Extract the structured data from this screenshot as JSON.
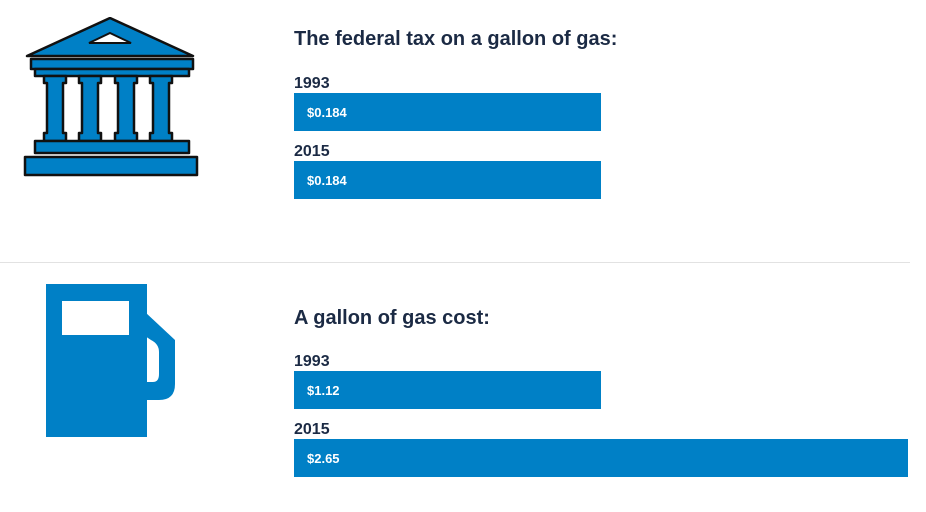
{
  "colors": {
    "bar": "#0080c6",
    "text": "#1b2a44"
  },
  "chart_data": [
    {
      "type": "bar",
      "orientation": "horizontal",
      "title": "The federal tax on a gallon of gas:",
      "icon": "bank-building-icon",
      "categories": [
        "1993",
        "2015"
      ],
      "values": [
        0.184,
        0.184
      ],
      "value_labels": [
        "$0.184",
        "$0.184"
      ]
    },
    {
      "type": "bar",
      "orientation": "horizontal",
      "title": "A gallon of gas cost:",
      "icon": "gas-pump-icon",
      "categories": [
        "1993",
        "2015"
      ],
      "values": [
        1.12,
        2.65
      ],
      "value_labels": [
        "$1.12",
        "$2.65"
      ]
    }
  ]
}
